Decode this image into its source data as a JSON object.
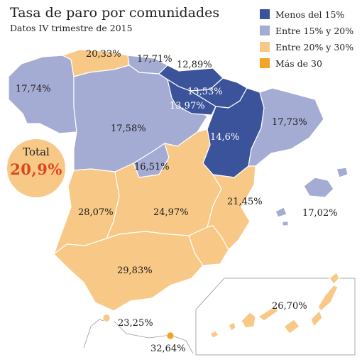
{
  "title": "Tasa de paro por comunidades",
  "subtitle": "Datos IV trimestre de 2015",
  "legend": [
    {
      "label": "Menos del 15%",
      "color": "#3b539a"
    },
    {
      "label": "Entre 15% y 20%",
      "color": "#a5acd3"
    },
    {
      "label": "Entre 20% y 30%",
      "color": "#f8c886"
    },
    {
      "label": "Más de 30",
      "color": "#f2a426"
    }
  ],
  "total": {
    "label": "Total",
    "value": "20,9%"
  },
  "regions": [
    {
      "id": "galicia",
      "value": "17,74%",
      "color": "#a5acd3"
    },
    {
      "id": "asturias",
      "value": "20,33%",
      "color": "#f8c886"
    },
    {
      "id": "cantabria",
      "value": "17,71%",
      "color": "#a5acd3"
    },
    {
      "id": "pais-vasco",
      "value": "12,89%",
      "color": "#3b539a"
    },
    {
      "id": "navarra",
      "value": "13,53%",
      "color": "#3b539a"
    },
    {
      "id": "la-rioja",
      "value": "13,97%",
      "color": "#3b539a"
    },
    {
      "id": "aragon",
      "value": "14,6%",
      "color": "#3b539a"
    },
    {
      "id": "cataluna",
      "value": "17,73%",
      "color": "#a5acd3"
    },
    {
      "id": "castilla-y-leon",
      "value": "17,58%",
      "color": "#a5acd3"
    },
    {
      "id": "madrid",
      "value": "16,51%",
      "color": "#a5acd3"
    },
    {
      "id": "valencia",
      "value": "21,45%",
      "color": "#f8c886"
    },
    {
      "id": "baleares",
      "value": "17,02%",
      "color": "#a5acd3"
    },
    {
      "id": "extremadura",
      "value": "28,07%",
      "color": "#f8c886"
    },
    {
      "id": "castilla-la-mancha",
      "value": "24,97%",
      "color": "#f8c886"
    },
    {
      "id": "murcia",
      "value": "",
      "color": "#f8c886"
    },
    {
      "id": "andalucia",
      "value": "29,83%",
      "color": "#f8c886"
    },
    {
      "id": "canarias",
      "value": "26,70%",
      "color": "#f8c886"
    },
    {
      "id": "ceuta",
      "value": "23,25%",
      "color": "#f8c886"
    },
    {
      "id": "melilla",
      "value": "32,64%",
      "color": "#f2a426"
    }
  ]
}
